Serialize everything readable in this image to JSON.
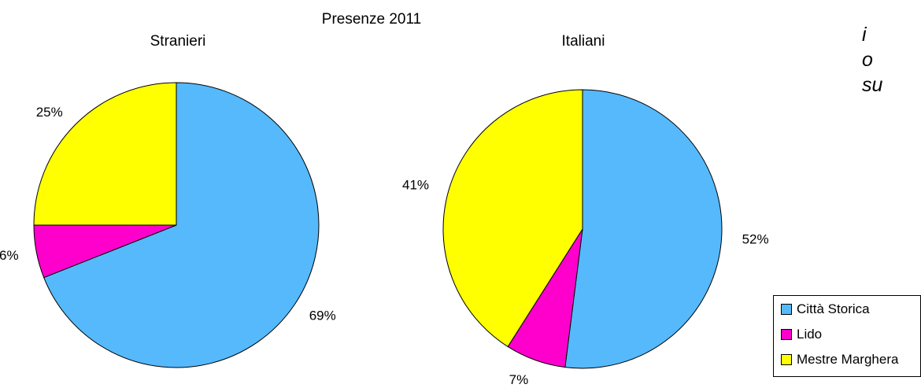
{
  "side_text": [
    "i",
    "o",
    "su"
  ],
  "chart_data": {
    "type": "pie",
    "title": "Presenze 2011",
    "categories": [
      "Città Storica",
      "Lido",
      "Mestre Marghera"
    ],
    "colors": {
      "Città Storica": "#55b9fc",
      "Lido": "#ff00cc",
      "Mestre Marghera": "#ffff00"
    },
    "legend_position": "bottom-right",
    "pies": [
      {
        "title": "Stranieri",
        "values": [
          69,
          6,
          25
        ],
        "labels": [
          "69%",
          "6%",
          "25%"
        ]
      },
      {
        "title": "Italiani",
        "values": [
          52,
          7,
          41
        ],
        "labels": [
          "52%",
          "7%",
          "41%"
        ]
      }
    ]
  }
}
